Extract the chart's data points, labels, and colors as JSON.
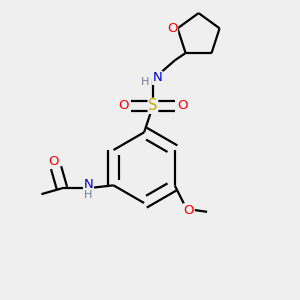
{
  "bg_color": "#efefef",
  "bond_color": "#000000",
  "atom_colors": {
    "O": "#ff0000",
    "N": "#0000cd",
    "S": "#ccaa00",
    "H": "#708090",
    "C": "#000000"
  },
  "font_size": 9.5,
  "lw": 1.6
}
